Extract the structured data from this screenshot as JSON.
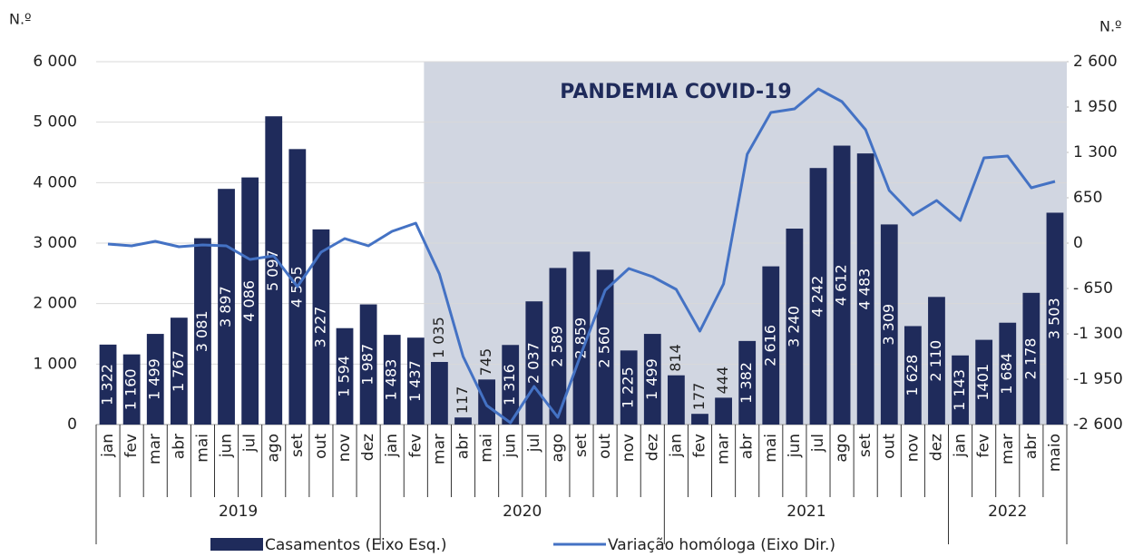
{
  "chart_data": {
    "type": "bar_line",
    "annotation": "PANDEMIA COVID-19",
    "y_label": "N.º",
    "y2_label": "N.º",
    "category_groups": [
      {
        "label": "2019",
        "categories": [
          "jan",
          "fev",
          "mar",
          "abr",
          "mai",
          "jun",
          "jul",
          "ago",
          "set",
          "out",
          "nov",
          "dez"
        ]
      },
      {
        "label": "2020",
        "categories": [
          "jan",
          "fev",
          "mar",
          "abr",
          "mai",
          "jun",
          "jul",
          "ago",
          "set",
          "out",
          "nov",
          "dez"
        ]
      },
      {
        "label": "2021",
        "categories": [
          "jan",
          "fev",
          "mar",
          "abr",
          "mai",
          "jun",
          "jul",
          "ago",
          "set",
          "out",
          "nov",
          "dez"
        ]
      },
      {
        "label": "2022",
        "categories": [
          "jan",
          "fev",
          "mar",
          "abr",
          "maio"
        ]
      }
    ],
    "series": [
      {
        "name": "Casamentos (Eixo Esq.)",
        "kind": "bar",
        "color": "#1f2b5b",
        "values": [
          1322,
          1160,
          1499,
          1767,
          3081,
          3897,
          4086,
          5097,
          4555,
          3227,
          1594,
          1987,
          1483,
          1437,
          1035,
          117,
          745,
          1316,
          2037,
          2589,
          2859,
          2560,
          1225,
          1499,
          814,
          177,
          444,
          1382,
          2616,
          3240,
          4242,
          4612,
          4483,
          3309,
          1628,
          2110,
          1143,
          1401,
          1684,
          2178,
          3503
        ],
        "value_labels": [
          "1 322",
          "1 160",
          "1 499",
          "1 767",
          "3 081",
          "3 897",
          "4 086",
          "5 097",
          "4 555",
          "3 227",
          "1 594",
          "1 987",
          "1 483",
          "1 437",
          "1 035",
          "117",
          "745",
          "1 316",
          "2 037",
          "2 589",
          "2 859",
          "2 560",
          "1 225",
          "1 499",
          "814",
          "177",
          "444",
          "1 382",
          "2 616",
          "3 240",
          "4 242",
          "4 612",
          "4 483",
          "3 309",
          "1 628",
          "2 110",
          "1 143",
          "1401",
          "1 684",
          "2 178",
          "3 503"
        ]
      },
      {
        "name": "Variação homóloga (Eixo Dir.)",
        "kind": "line",
        "axis": "y2",
        "color": "#4472c4",
        "values": [
          -13,
          -39,
          26,
          -52,
          -26,
          -39,
          -234,
          -182,
          -624,
          -130,
          65,
          -39,
          169,
          286,
          -442,
          -1625,
          -2327,
          -2574,
          -2054,
          -2496,
          -1573,
          -676,
          -364,
          -481,
          -663,
          -1261,
          -585,
          1274,
          1872,
          1924,
          2210,
          2028,
          1625,
          754,
          403,
          611,
          325,
          1222,
          1248,
          793,
          884
        ]
      }
    ],
    "ylim": [
      0,
      6000
    ],
    "yticks": [
      0,
      {
        "value": 1000,
        "label": "1 000"
      },
      {
        "value": 2000,
        "label": "2 000"
      },
      {
        "value": 3000,
        "label": "3 000"
      },
      {
        "value": 4000,
        "label": "4 000"
      },
      {
        "value": 5000,
        "label": "5 000"
      },
      {
        "value": 6000,
        "label": "6 000"
      }
    ],
    "y2lim": [
      -2600,
      2600
    ],
    "y2ticks": [
      {
        "value": -2600,
        "label": "-2 600"
      },
      {
        "value": -1950,
        "label": "-1 950"
      },
      {
        "value": -1300,
        "label": "-1 300"
      },
      {
        "value": -650,
        "label": "- 650"
      },
      0,
      650,
      {
        "value": 1300,
        "label": "1 300"
      },
      {
        "value": 1950,
        "label": "1 950"
      },
      {
        "value": 2600,
        "label": "2 600"
      }
    ],
    "grid": true,
    "legend": "bottom"
  }
}
